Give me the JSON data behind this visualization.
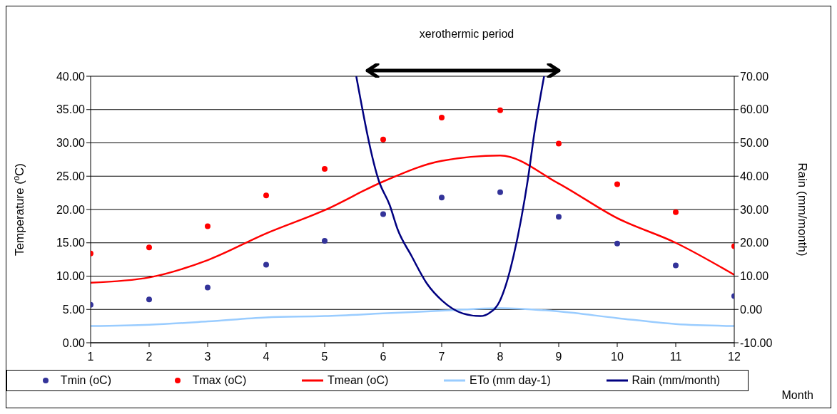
{
  "chart_data": {
    "type": "line",
    "xlabel": "Month",
    "ylabel": "Temperature (ºC)",
    "y2label": "Rain (mm/month)",
    "annotations": [
      "xerothermic period"
    ],
    "x": [
      1,
      2,
      3,
      4,
      5,
      6,
      7,
      8,
      9,
      10,
      11,
      12
    ],
    "xlim": [
      1,
      12
    ],
    "xticks": [
      1,
      2,
      3,
      4,
      5,
      6,
      7,
      8,
      9,
      10,
      11,
      12
    ],
    "ylim": [
      0,
      40
    ],
    "yticks": [
      {
        "value": 0,
        "label": "0.00"
      },
      {
        "value": 5,
        "label": "5.00"
      },
      {
        "value": 10,
        "label": "10.00"
      },
      {
        "value": 15,
        "label": "15.00"
      },
      {
        "value": 20,
        "label": "20.00"
      },
      {
        "value": 25,
        "label": "25.00"
      },
      {
        "value": 30,
        "label": "30.00"
      },
      {
        "value": 35,
        "label": "35.00"
      },
      {
        "value": 40,
        "label": "40.00"
      }
    ],
    "y2lim": [
      -10,
      70
    ],
    "y2ticks": [
      {
        "value": -10,
        "label": "-10.00"
      },
      {
        "value": 0,
        "label": "0.00"
      },
      {
        "value": 10,
        "label": "10.00"
      },
      {
        "value": 20,
        "label": "20.00"
      },
      {
        "value": 30,
        "label": "30.00"
      },
      {
        "value": 40,
        "label": "40.00"
      },
      {
        "value": 50,
        "label": "50.00"
      },
      {
        "value": 60,
        "label": "60.00"
      },
      {
        "value": 70,
        "label": "70.00"
      }
    ],
    "grid": "y",
    "legend": "bottom",
    "series": [
      {
        "name": "Tmin (oC)",
        "type": "scatter",
        "marker": "circle",
        "color": "#333399",
        "values": [
          5.7,
          6.5,
          8.3,
          11.7,
          15.3,
          19.3,
          21.8,
          22.6,
          18.9,
          14.9,
          11.6,
          7.0
        ]
      },
      {
        "name": "Tmax (oC)",
        "type": "scatter",
        "marker": "circle",
        "color": "#ff0000",
        "values": [
          13.4,
          14.3,
          17.5,
          22.1,
          26.1,
          30.5,
          33.8,
          34.9,
          29.9,
          23.8,
          19.6,
          14.5
        ]
      },
      {
        "name": "Tmean (oC)",
        "marker": "none",
        "color": "#ff0000",
        "values": [
          9.0,
          9.8,
          12.4,
          16.4,
          19.9,
          24.2,
          27.3,
          28.1,
          23.9,
          18.7,
          15.0,
          10.2
        ]
      },
      {
        "name": "ETo (mm day-1)",
        "marker": "none",
        "color": "#99ccff",
        "values": [
          2.5,
          2.7,
          3.2,
          3.8,
          4.0,
          4.4,
          4.8,
          5.2,
          4.7,
          3.7,
          2.8,
          2.5
        ]
      },
      {
        "name": "Rain (mm/month)",
        "marker": "none",
        "color": "#000080",
        "axis": "y2",
        "x": [
          5.54,
          5.93,
          6.11,
          6.25,
          6.48,
          6.75,
          7.01,
          7.36,
          7.66,
          7.82,
          7.99,
          8.1,
          8.23,
          8.36,
          8.48,
          8.58,
          8.75
        ],
        "values": [
          70,
          38.4,
          31.4,
          23.9,
          16.2,
          7.7,
          2.6,
          -1.2,
          -2.0,
          -1.0,
          2.4,
          7.5,
          16.2,
          27.3,
          39.9,
          52.5,
          70
        ]
      }
    ]
  }
}
